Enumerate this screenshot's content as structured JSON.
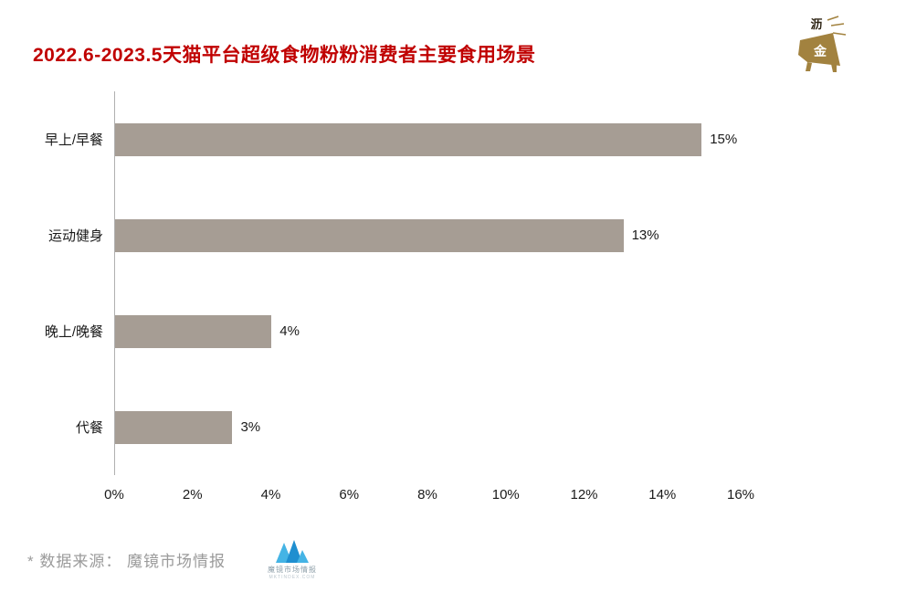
{
  "header": {
    "title": "2022.6-2023.5天猫平台超级食物粉粉消费者主要食用场景",
    "logo_text_top": "沥",
    "logo_text_bottom": "金"
  },
  "chart_data": {
    "type": "bar",
    "orientation": "horizontal",
    "title": "2022.6-2023.5天猫平台超级食物粉粉消费者主要食用场景",
    "categories": [
      "早上/早餐",
      "运动健身",
      "晚上/晚餐",
      "代餐"
    ],
    "values": [
      15,
      13,
      4,
      3
    ],
    "value_labels": [
      "15%",
      "13%",
      "4%",
      "3%"
    ],
    "x_ticks": [
      "0%",
      "2%",
      "4%",
      "6%",
      "8%",
      "10%",
      "12%",
      "14%",
      "16%"
    ],
    "xlim": [
      0,
      16
    ],
    "xlabel": "",
    "ylabel": "",
    "grid": false,
    "legend": false,
    "bar_color": "#a69d94"
  },
  "footer": {
    "source": "* 数据来源： 魔镜市场情报",
    "logo_caption": "魔镜市场情报",
    "logo_subcaption": "MKTINDEX.COM"
  },
  "colors": {
    "title": "#c00000",
    "bar": "#a69d94",
    "gold": "#a2823f",
    "gold_dark": "#6e5526",
    "footer_text": "#9b9b9b",
    "logo_blue_light": "#45b4e5",
    "logo_blue_dark": "#1f8fd0",
    "axis_line": "#b0b0b0"
  }
}
